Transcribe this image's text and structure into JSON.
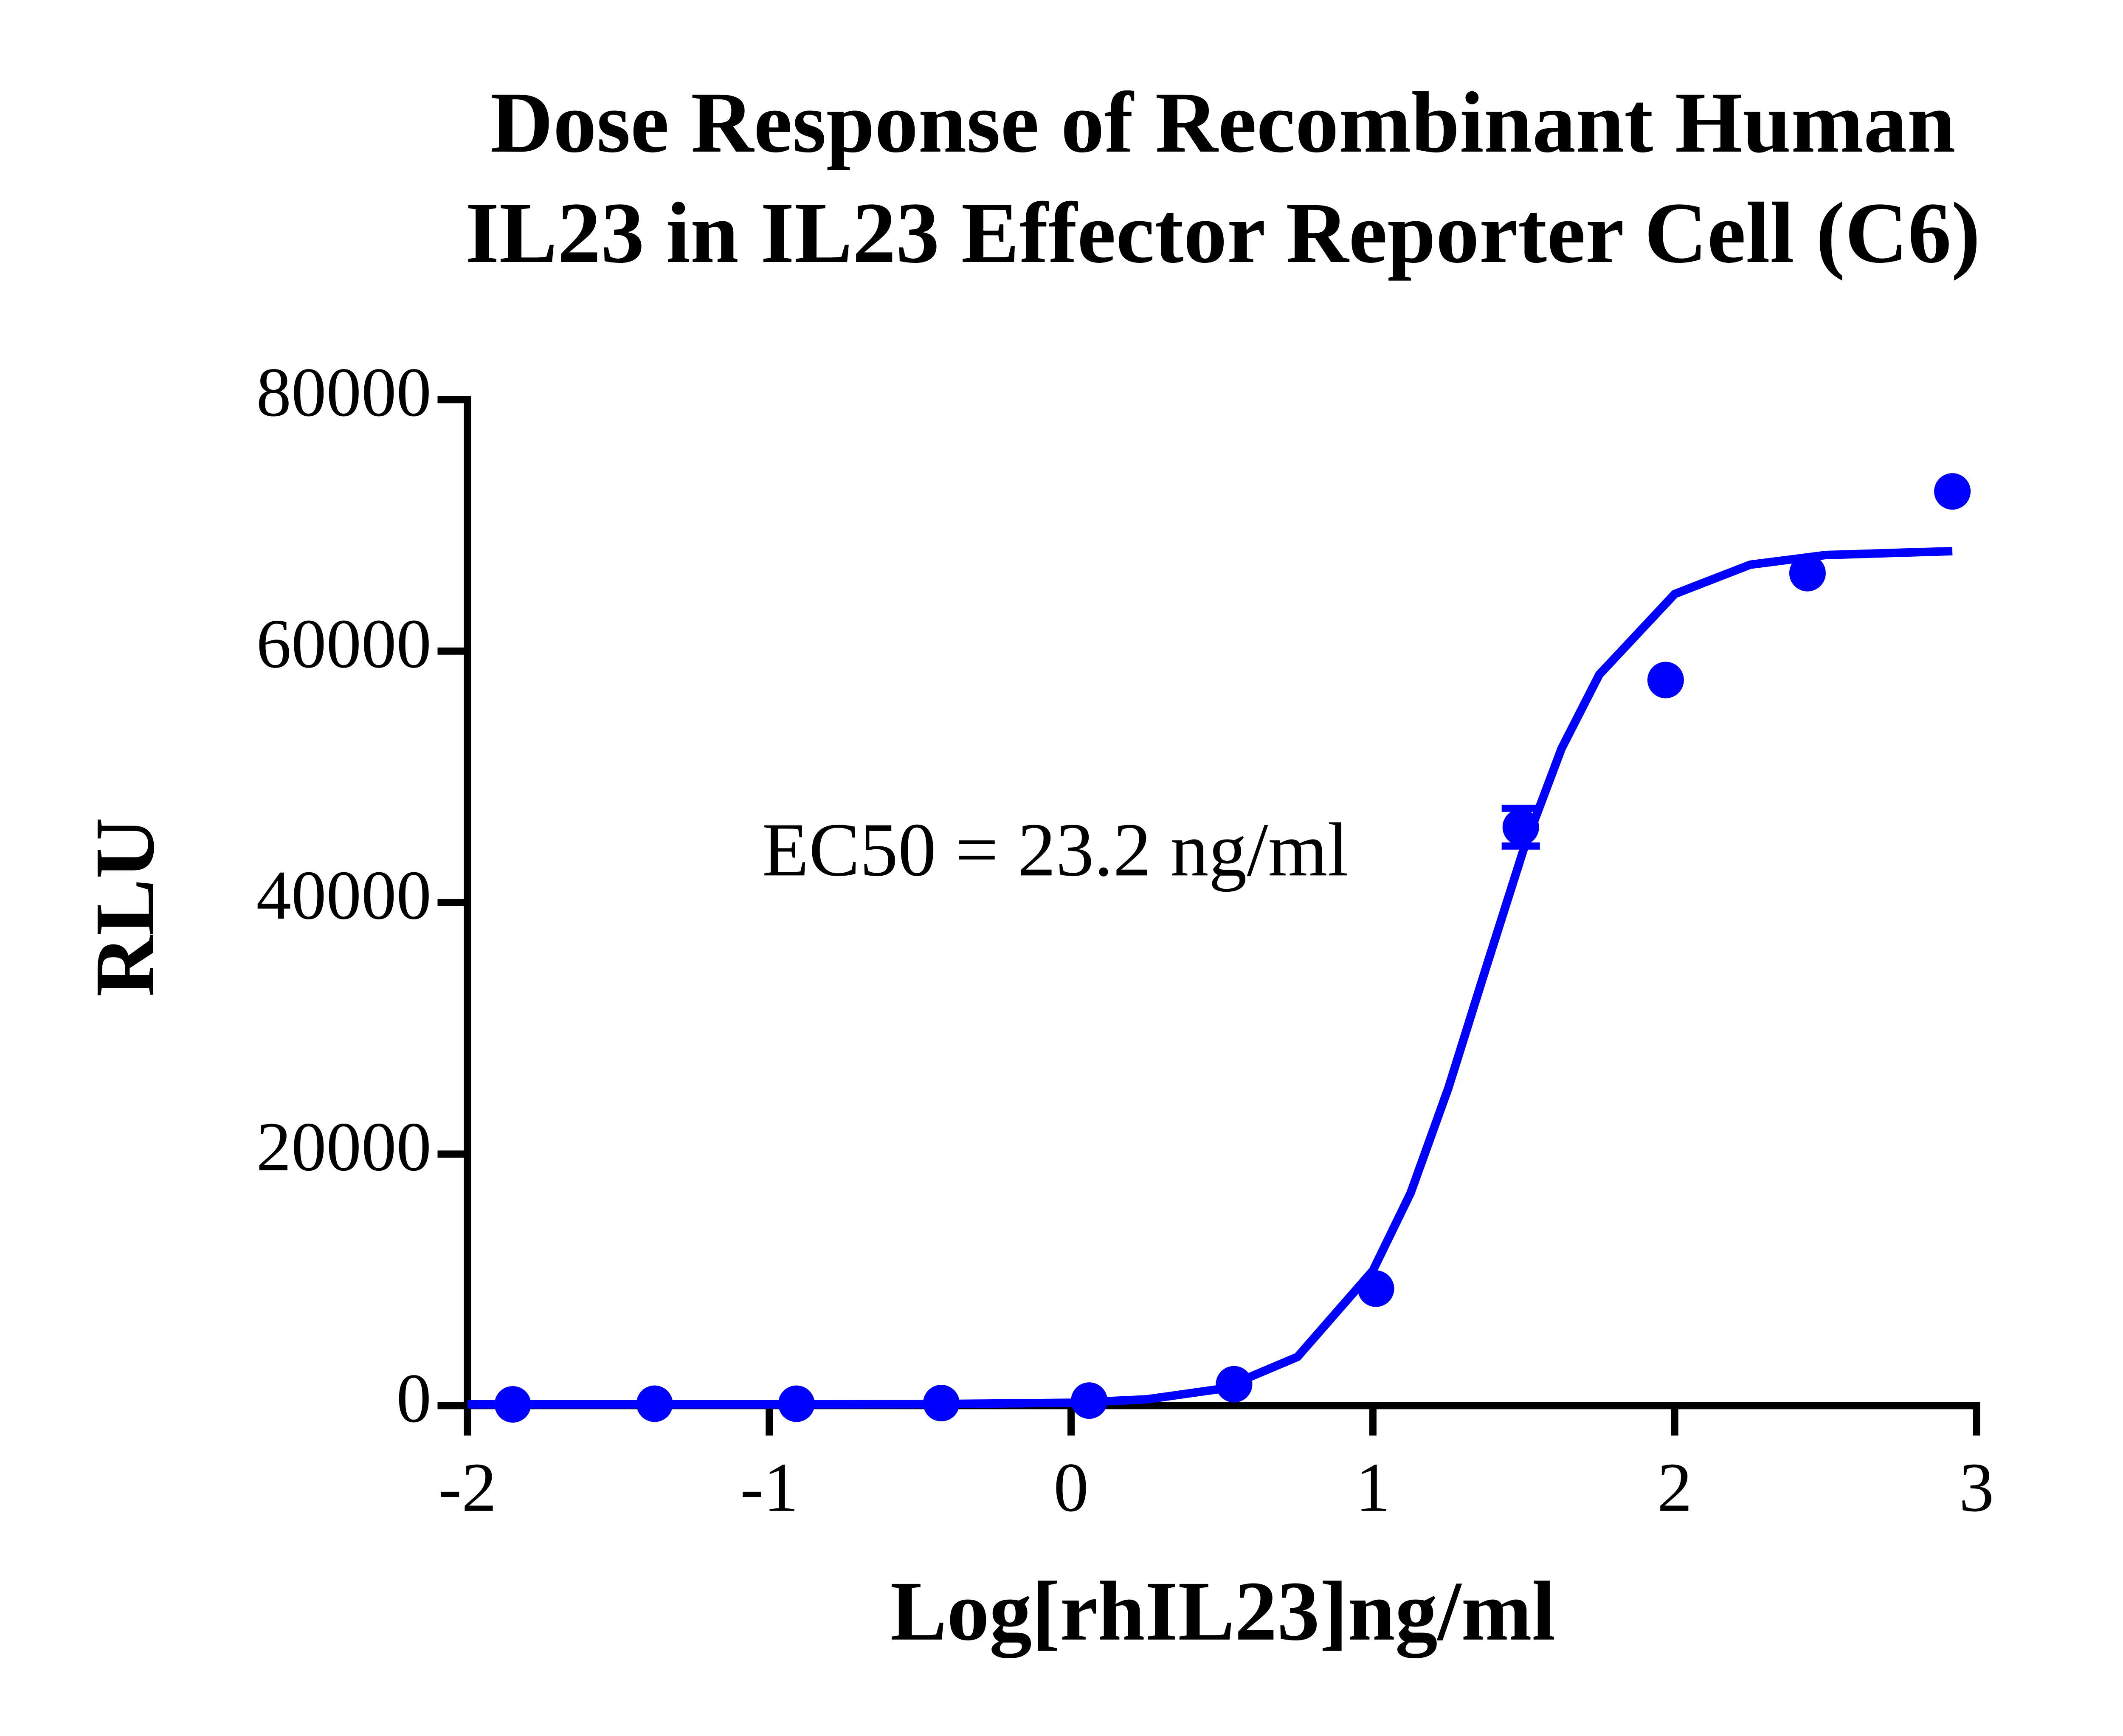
{
  "chart_data": {
    "type": "scatter",
    "title": [
      "Dose Response of Recombinant Human",
      "IL23 in IL23 Effector Reporter Cell (C6)"
    ],
    "x_label": "Log[rhIL23]ng/ml",
    "y_label": "RLU",
    "annotation": "EC50 = 23.2 ng/ml",
    "color": "#0000ff",
    "x": [
      -1.85,
      -1.38,
      -0.91,
      -0.43,
      0.06,
      0.54,
      1.01,
      1.49,
      1.97,
      2.44,
      2.92
    ],
    "values": [
      100,
      150,
      150,
      200,
      400,
      1700,
      9300,
      46000,
      57700,
      66200,
      72700
    ],
    "errors": [
      null,
      null,
      null,
      null,
      null,
      null,
      null,
      1500,
      null,
      null,
      null
    ],
    "fit": {
      "x": [
        -2,
        -1.5,
        -1,
        -0.5,
        0,
        0.25,
        0.5,
        0.75,
        1,
        1.125,
        1.25,
        1.375,
        1.5,
        1.625,
        1.75,
        2,
        2.25,
        2.5,
        2.92
      ],
      "values": [
        100,
        100,
        100,
        113,
        226,
        498,
        1342,
        3873,
        10740,
        16910,
        25250,
        34830,
        44280,
        52250,
        58130,
        64540,
        66870,
        67640,
        67950
      ]
    },
    "xlim": [
      -2,
      3
    ],
    "xticks": [
      -2,
      -1,
      0,
      1,
      2,
      3
    ],
    "ylim": [
      0,
      80000
    ],
    "yticks": [
      0,
      20000,
      40000,
      60000,
      80000
    ]
  }
}
